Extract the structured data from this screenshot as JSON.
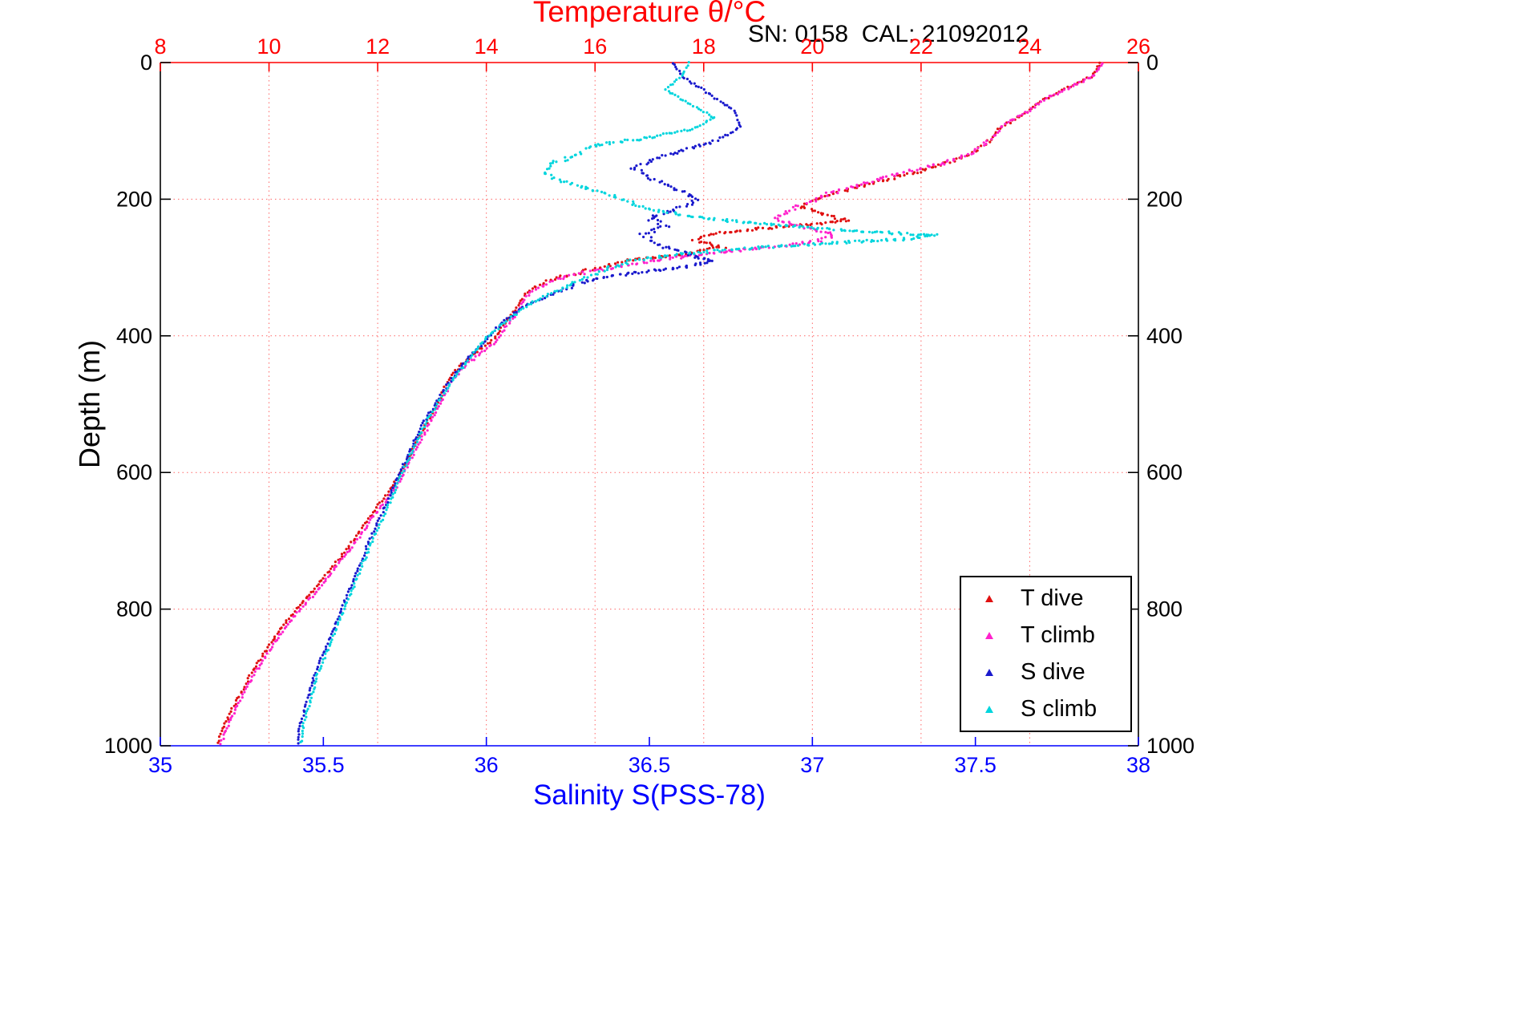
{
  "chart_data": {
    "type": "scatter",
    "title": "Temperature θ/°C",
    "annotation": "SN: 0158  CAL: 21092012",
    "grid": true,
    "grid_color": "#ff6666",
    "legend_position": "bottom-right",
    "x_axes": {
      "temperature": {
        "label": "Temperature θ/°C",
        "position": "top",
        "color": "#ff0000",
        "range": [
          8,
          26
        ],
        "ticks": [
          8,
          10,
          12,
          14,
          16,
          18,
          20,
          22,
          24,
          26
        ]
      },
      "salinity": {
        "label": "Salinity S(PSS-78)",
        "position": "bottom",
        "color": "#0000ff",
        "range": [
          35,
          38
        ],
        "ticks": [
          35,
          35.5,
          36,
          36.5,
          37,
          37.5,
          38
        ]
      }
    },
    "y_axis": {
      "label": "Depth (m)",
      "direction": "down",
      "color": "#000000",
      "range": [
        0,
        1000
      ],
      "ticks": [
        0,
        200,
        400,
        600,
        800,
        1000
      ]
    },
    "series": [
      {
        "name": "T dive",
        "axis": "temperature",
        "color": "#e01010",
        "points": [
          [
            25.3,
            0
          ],
          [
            25.15,
            20
          ],
          [
            24.6,
            40
          ],
          [
            24.25,
            55
          ],
          [
            23.9,
            75
          ],
          [
            23.45,
            95
          ],
          [
            23.25,
            115
          ],
          [
            22.9,
            135
          ],
          [
            22.2,
            155
          ],
          [
            21.4,
            170
          ],
          [
            20.7,
            185
          ],
          [
            20.1,
            200
          ],
          [
            19.8,
            212
          ],
          [
            20.25,
            222
          ],
          [
            20.65,
            232
          ],
          [
            19.2,
            242
          ],
          [
            18.2,
            250
          ],
          [
            17.85,
            260
          ],
          [
            18.35,
            270
          ],
          [
            17.6,
            280
          ],
          [
            16.6,
            290
          ],
          [
            16.1,
            300
          ],
          [
            15.3,
            315
          ],
          [
            14.75,
            335
          ],
          [
            14.55,
            360
          ],
          [
            14.3,
            385
          ],
          [
            14.15,
            405
          ],
          [
            13.8,
            425
          ],
          [
            13.5,
            445
          ],
          [
            13.3,
            465
          ],
          [
            13.15,
            490
          ],
          [
            12.95,
            520
          ],
          [
            12.75,
            550
          ],
          [
            12.55,
            580
          ],
          [
            12.4,
            605
          ],
          [
            12.15,
            635
          ],
          [
            11.85,
            665
          ],
          [
            11.55,
            700
          ],
          [
            11.2,
            735
          ],
          [
            10.85,
            770
          ],
          [
            10.5,
            800
          ],
          [
            10.2,
            830
          ],
          [
            9.95,
            860
          ],
          [
            9.7,
            890
          ],
          [
            9.5,
            920
          ],
          [
            9.3,
            950
          ],
          [
            9.15,
            975
          ],
          [
            9.05,
            1000
          ]
        ]
      },
      {
        "name": "T climb",
        "axis": "temperature",
        "color": "#ff22cc",
        "points": [
          [
            25.35,
            0
          ],
          [
            25.2,
            18
          ],
          [
            24.7,
            38
          ],
          [
            24.3,
            52
          ],
          [
            23.95,
            72
          ],
          [
            23.5,
            92
          ],
          [
            23.3,
            112
          ],
          [
            23.0,
            130
          ],
          [
            22.4,
            148
          ],
          [
            21.6,
            162
          ],
          [
            20.9,
            178
          ],
          [
            20.3,
            192
          ],
          [
            19.9,
            205
          ],
          [
            19.55,
            218
          ],
          [
            19.3,
            228
          ],
          [
            19.8,
            240
          ],
          [
            20.4,
            252
          ],
          [
            20.1,
            262
          ],
          [
            19.0,
            272
          ],
          [
            17.8,
            282
          ],
          [
            16.9,
            292
          ],
          [
            16.15,
            302
          ],
          [
            15.35,
            316
          ],
          [
            14.8,
            336
          ],
          [
            14.6,
            362
          ],
          [
            14.35,
            388
          ],
          [
            14.18,
            408
          ],
          [
            13.85,
            428
          ],
          [
            13.55,
            448
          ],
          [
            13.35,
            468
          ],
          [
            13.2,
            492
          ],
          [
            13.0,
            522
          ],
          [
            12.8,
            552
          ],
          [
            12.6,
            582
          ],
          [
            12.45,
            607
          ],
          [
            12.2,
            637
          ],
          [
            11.9,
            667
          ],
          [
            11.6,
            702
          ],
          [
            11.25,
            737
          ],
          [
            10.9,
            772
          ],
          [
            10.55,
            802
          ],
          [
            10.25,
            832
          ],
          [
            10.0,
            862
          ],
          [
            9.75,
            892
          ],
          [
            9.55,
            922
          ],
          [
            9.35,
            952
          ],
          [
            9.2,
            977
          ],
          [
            9.1,
            1000
          ]
        ]
      },
      {
        "name": "S dive",
        "axis": "salinity",
        "color": "#1a1acd",
        "points": [
          [
            36.57,
            0
          ],
          [
            36.6,
            20
          ],
          [
            36.68,
            45
          ],
          [
            36.76,
            70
          ],
          [
            36.78,
            95
          ],
          [
            36.7,
            115
          ],
          [
            36.55,
            135
          ],
          [
            36.45,
            155
          ],
          [
            36.52,
            172
          ],
          [
            36.6,
            188
          ],
          [
            36.65,
            202
          ],
          [
            36.58,
            215
          ],
          [
            36.5,
            228
          ],
          [
            36.55,
            240
          ],
          [
            36.48,
            252
          ],
          [
            36.52,
            265
          ],
          [
            36.6,
            278
          ],
          [
            36.7,
            290
          ],
          [
            36.6,
            300
          ],
          [
            36.42,
            310
          ],
          [
            36.3,
            320
          ],
          [
            36.22,
            335
          ],
          [
            36.12,
            355
          ],
          [
            36.05,
            380
          ],
          [
            36.0,
            405
          ],
          [
            35.94,
            435
          ],
          [
            35.89,
            465
          ],
          [
            35.85,
            495
          ],
          [
            35.81,
            525
          ],
          [
            35.78,
            555
          ],
          [
            35.75,
            585
          ],
          [
            35.72,
            615
          ],
          [
            35.69,
            650
          ],
          [
            35.65,
            690
          ],
          [
            35.62,
            725
          ],
          [
            35.59,
            760
          ],
          [
            35.56,
            795
          ],
          [
            35.53,
            830
          ],
          [
            35.5,
            865
          ],
          [
            35.47,
            900
          ],
          [
            35.45,
            935
          ],
          [
            35.43,
            968
          ],
          [
            35.42,
            1000
          ]
        ]
      },
      {
        "name": "S climb",
        "axis": "salinity",
        "color": "#00d5dd",
        "points": [
          [
            36.62,
            0
          ],
          [
            36.6,
            20
          ],
          [
            36.55,
            40
          ],
          [
            36.62,
            60
          ],
          [
            36.7,
            80
          ],
          [
            36.65,
            95
          ],
          [
            36.5,
            110
          ],
          [
            36.32,
            122
          ],
          [
            36.28,
            135
          ],
          [
            36.2,
            148
          ],
          [
            36.17,
            160
          ],
          [
            36.22,
            172
          ],
          [
            36.3,
            183
          ],
          [
            36.38,
            194
          ],
          [
            36.45,
            205
          ],
          [
            36.5,
            215
          ],
          [
            36.62,
            225
          ],
          [
            36.8,
            234
          ],
          [
            37.0,
            242
          ],
          [
            37.2,
            248
          ],
          [
            37.38,
            253
          ],
          [
            37.3,
            258
          ],
          [
            37.05,
            264
          ],
          [
            36.8,
            272
          ],
          [
            36.6,
            280
          ],
          [
            36.45,
            290
          ],
          [
            36.38,
            300
          ],
          [
            36.32,
            312
          ],
          [
            36.25,
            327
          ],
          [
            36.15,
            348
          ],
          [
            36.07,
            375
          ],
          [
            36.0,
            402
          ],
          [
            35.95,
            432
          ],
          [
            35.9,
            462
          ],
          [
            35.86,
            492
          ],
          [
            35.82,
            522
          ],
          [
            35.79,
            552
          ],
          [
            35.76,
            582
          ],
          [
            35.73,
            612
          ],
          [
            35.7,
            648
          ],
          [
            35.66,
            688
          ],
          [
            35.63,
            723
          ],
          [
            35.6,
            758
          ],
          [
            35.57,
            793
          ],
          [
            35.54,
            828
          ],
          [
            35.51,
            863
          ],
          [
            35.48,
            898
          ],
          [
            35.46,
            933
          ],
          [
            35.44,
            966
          ],
          [
            35.43,
            1000
          ]
        ]
      }
    ]
  }
}
